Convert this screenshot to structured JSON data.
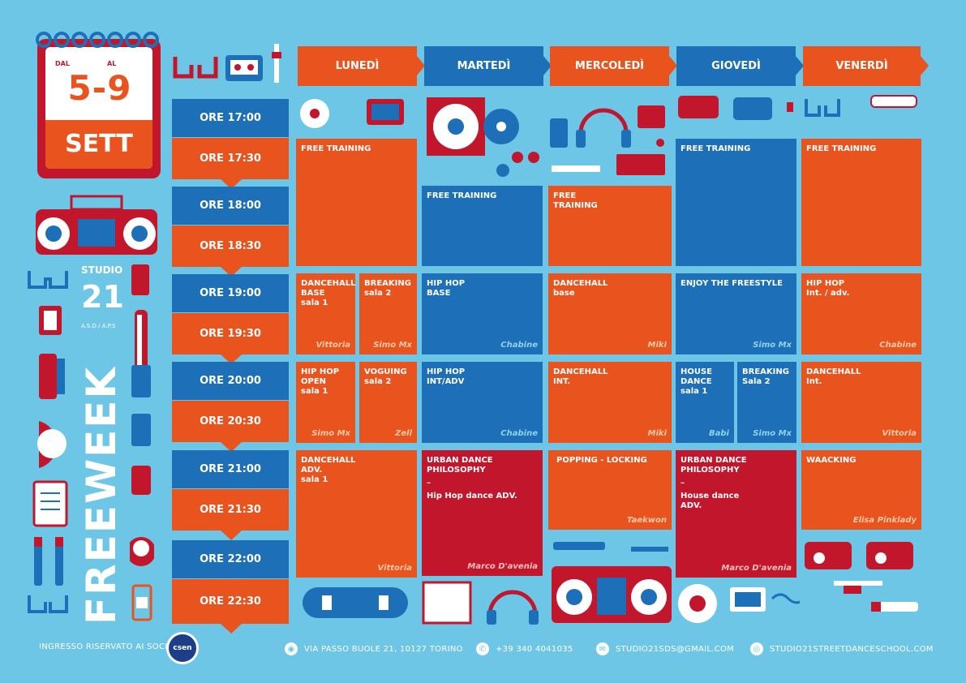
{
  "calendar": {
    "dal": "DAL",
    "al": "AL",
    "range": "5-9",
    "month": "SETT"
  },
  "studio": {
    "top": "STUDIO",
    "number": "21",
    "sub": "A.S.D / A.P.S",
    "freeweek": "FREEWEEK"
  },
  "days": [
    "LUNEDÌ",
    "MARTEDÌ",
    "MERCOLEDÌ",
    "GIOVEDÌ",
    "VENERDÌ"
  ],
  "times": [
    "ORE 17:00",
    "ORE 17:30",
    "ORE 18:00",
    "ORE 18:30",
    "ORE 19:00",
    "ORE 19:30",
    "ORE 20:00",
    "ORE 20:30",
    "ORE 21:00",
    "ORE 21:30",
    "ORE 22:00",
    "ORE 22:30"
  ],
  "classes": {
    "mon_free": {
      "name": "FREE TRAINING"
    },
    "tue_free": {
      "name": "FREE TRAINING"
    },
    "wed_free": {
      "name": "FREE\nTRAINING"
    },
    "thu_free": {
      "name": "FREE TRAINING"
    },
    "fri_free": {
      "name": "FREE TRAINING"
    },
    "mon_dh": {
      "name": "DANCEHALL\nBASE",
      "sub": "sala 1",
      "teacher": "Vittoria"
    },
    "mon_br": {
      "name": "BREAKING",
      "sub": "sala 2",
      "teacher": "Simo Mx"
    },
    "tue_hh": {
      "name": "HIP HOP\nBASE",
      "teacher": "Chabine"
    },
    "wed_dh": {
      "name": "DANCEHALL",
      "sub": "base",
      "teacher": "Miki"
    },
    "thu_ef": {
      "name": "ENJOY THE FREESTYLE",
      "teacher": "Simo Mx"
    },
    "fri_hh": {
      "name": "HIP HOP",
      "sub": "Int. / adv.",
      "teacher": "Chabine"
    },
    "mon_hho": {
      "name": "HIP HOP\nOPEN",
      "sub": "sala 1",
      "teacher": "Simo Mx"
    },
    "mon_vo": {
      "name": "VOGUING",
      "sub": "sala 2",
      "teacher": "Zell"
    },
    "tue_hhi": {
      "name": "HIP HOP\nINT/ADV",
      "teacher": "Chabine"
    },
    "wed_dhi": {
      "name": "DANCEHALL\nINT.",
      "teacher": "Miki"
    },
    "thu_hd": {
      "name": "HOUSE\nDANCE",
      "sub": "sala 1",
      "teacher": "Babi"
    },
    "thu_br": {
      "name": "BREAKING",
      "sub": "Sala 2",
      "teacher": "Simo Mx"
    },
    "fri_dh": {
      "name": "DANCEHALL",
      "sub": "Int.",
      "teacher": "Vittoria"
    },
    "mon_dha": {
      "name": "DANCEHALL\nADV.",
      "sub": "sala 1",
      "teacher": "Vittoria"
    },
    "tue_ud": {
      "name": "URBAN DANCE\nPHILOSOPHY",
      "sub": "–",
      "sub2": "Hip Hop dance ADV.",
      "teacher": "Marco D'avenia"
    },
    "wed_pl": {
      "name": "POPPING - LOCKING",
      "teacher": "Taekwon"
    },
    "thu_ud": {
      "name": "URBAN DANCE\nPHILOSOPHY",
      "sub": "–",
      "sub2": "House dance\nADV.",
      "teacher": "Marco D'avenia"
    },
    "fri_wa": {
      "name": "WAACKING",
      "teacher": "Elisa Pinklady"
    }
  },
  "footer": {
    "members": "INGRESSO RISERVATO AI SOCI",
    "csen": "csen",
    "address": "VIA PASSO BUOLE 21, 10127 TORINO",
    "phone": "+39 340 4041035",
    "email": "STUDIO21SDS@GMAIL.COM",
    "web": "STUDIO21STREETDANCESCHOOL.COM"
  },
  "colors": {
    "background": "#6ec6e6",
    "orange": "#e8531e",
    "blue": "#1d6fb8",
    "red": "#c1162b"
  }
}
